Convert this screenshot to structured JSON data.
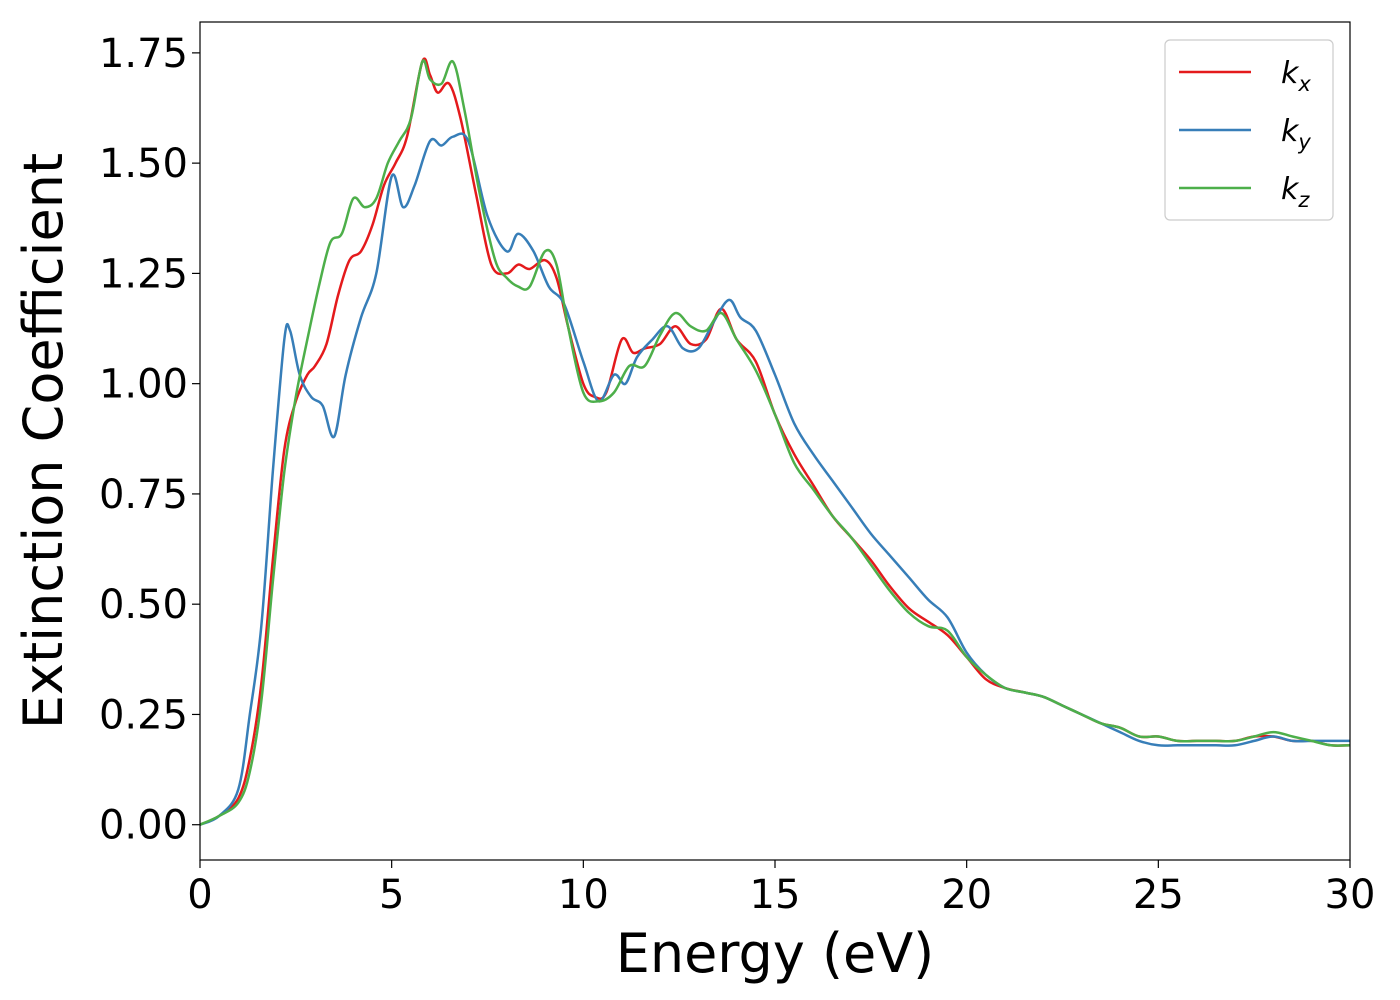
{
  "chart_data": {
    "type": "line",
    "title": "",
    "xlabel": "Energy (eV)",
    "ylabel": "Extinction Coefficient",
    "xlim": [
      0,
      30
    ],
    "ylim": [
      -0.08,
      1.82
    ],
    "xticks": [
      0,
      5,
      10,
      15,
      20,
      25,
      30
    ],
    "xtick_labels": [
      "0",
      "5",
      "10",
      "15",
      "20",
      "25",
      "30"
    ],
    "yticks": [
      0.0,
      0.25,
      0.5,
      0.75,
      1.0,
      1.25,
      1.5,
      1.75
    ],
    "ytick_labels": [
      "0.00",
      "0.25",
      "0.50",
      "0.75",
      "1.00",
      "1.25",
      "1.50",
      "1.75"
    ],
    "grid": false,
    "legend_position": "top-right",
    "series": [
      {
        "name": "k_x",
        "label_main": "k",
        "label_sub": "x",
        "color": "#e41a1c",
        "x": [
          0,
          0.5,
          1.0,
          1.3,
          1.6,
          1.9,
          2.2,
          2.5,
          2.8,
          3.0,
          3.3,
          3.6,
          3.9,
          4.2,
          4.5,
          4.8,
          5.1,
          5.4,
          5.8,
          6.0,
          6.2,
          6.5,
          6.8,
          7.2,
          7.6,
          8.0,
          8.3,
          8.6,
          9.0,
          9.3,
          9.6,
          10.0,
          10.3,
          10.6,
          11.0,
          11.3,
          11.6,
          12.0,
          12.4,
          12.8,
          13.2,
          13.6,
          14.0,
          14.5,
          15.0,
          15.5,
          16.0,
          16.5,
          17.0,
          17.5,
          18.0,
          18.5,
          19.0,
          19.5,
          20.0,
          20.5,
          21.0,
          21.5,
          22.0,
          22.5,
          23.0,
          23.5,
          24.0,
          24.5,
          25.0,
          25.5,
          26.0,
          26.5,
          27.0,
          27.5,
          28.0,
          28.5,
          29.0,
          29.5,
          30.0
        ],
        "y": [
          0.0,
          0.02,
          0.06,
          0.15,
          0.32,
          0.6,
          0.85,
          0.96,
          1.02,
          1.04,
          1.09,
          1.2,
          1.28,
          1.3,
          1.36,
          1.45,
          1.5,
          1.56,
          1.73,
          1.7,
          1.66,
          1.68,
          1.6,
          1.43,
          1.27,
          1.25,
          1.27,
          1.26,
          1.28,
          1.24,
          1.13,
          1.0,
          0.97,
          0.98,
          1.1,
          1.07,
          1.08,
          1.09,
          1.13,
          1.09,
          1.1,
          1.17,
          1.1,
          1.05,
          0.93,
          0.84,
          0.77,
          0.7,
          0.65,
          0.6,
          0.54,
          0.49,
          0.46,
          0.43,
          0.38,
          0.33,
          0.31,
          0.3,
          0.29,
          0.27,
          0.25,
          0.23,
          0.22,
          0.2,
          0.2,
          0.19,
          0.19,
          0.19,
          0.19,
          0.2,
          0.2,
          0.19,
          0.19,
          0.18,
          0.18
        ]
      },
      {
        "name": "k_y",
        "label_main": "k",
        "label_sub": "y",
        "color": "#377eb8",
        "x": [
          0,
          0.5,
          1.0,
          1.3,
          1.6,
          1.9,
          2.2,
          2.35,
          2.6,
          2.9,
          3.2,
          3.5,
          3.8,
          4.2,
          4.6,
          5.0,
          5.3,
          5.6,
          6.0,
          6.3,
          6.6,
          7.0,
          7.5,
          8.0,
          8.3,
          8.7,
          9.1,
          9.5,
          10.0,
          10.4,
          10.8,
          11.1,
          11.4,
          11.8,
          12.2,
          12.6,
          13.0,
          13.4,
          13.8,
          14.1,
          14.5,
          15.0,
          15.5,
          16.0,
          16.5,
          17.0,
          17.5,
          18.0,
          18.5,
          19.0,
          19.5,
          20.0,
          20.5,
          21.0,
          21.5,
          22.0,
          22.5,
          23.0,
          23.5,
          24.0,
          24.5,
          25.0,
          25.5,
          26.0,
          26.5,
          27.0,
          27.5,
          28.0,
          28.5,
          29.0,
          29.5,
          30.0
        ],
        "y": [
          0.0,
          0.02,
          0.08,
          0.25,
          0.45,
          0.8,
          1.1,
          1.12,
          1.02,
          0.97,
          0.95,
          0.88,
          1.02,
          1.15,
          1.25,
          1.47,
          1.4,
          1.45,
          1.55,
          1.54,
          1.56,
          1.55,
          1.38,
          1.3,
          1.34,
          1.3,
          1.22,
          1.18,
          1.05,
          0.96,
          1.02,
          1.0,
          1.06,
          1.1,
          1.13,
          1.08,
          1.08,
          1.14,
          1.19,
          1.15,
          1.12,
          1.02,
          0.91,
          0.84,
          0.78,
          0.72,
          0.66,
          0.61,
          0.56,
          0.51,
          0.47,
          0.39,
          0.34,
          0.31,
          0.3,
          0.29,
          0.27,
          0.25,
          0.23,
          0.21,
          0.19,
          0.18,
          0.18,
          0.18,
          0.18,
          0.18,
          0.19,
          0.2,
          0.19,
          0.19,
          0.19,
          0.19
        ]
      },
      {
        "name": "k_z",
        "label_main": "k",
        "label_sub": "z",
        "color": "#4daf4a",
        "x": [
          0,
          0.5,
          1.0,
          1.3,
          1.6,
          1.9,
          2.2,
          2.5,
          2.8,
          3.1,
          3.4,
          3.7,
          4.0,
          4.3,
          4.6,
          4.9,
          5.2,
          5.5,
          5.8,
          6.0,
          6.3,
          6.6,
          6.9,
          7.3,
          7.7,
          8.0,
          8.3,
          8.6,
          9.0,
          9.3,
          9.6,
          10.0,
          10.4,
          10.8,
          11.2,
          11.6,
          12.0,
          12.4,
          12.8,
          13.2,
          13.6,
          14.0,
          14.5,
          15.0,
          15.5,
          16.0,
          16.5,
          17.0,
          17.5,
          18.0,
          18.5,
          19.0,
          19.5,
          20.0,
          20.5,
          21.0,
          21.5,
          22.0,
          22.5,
          23.0,
          23.5,
          24.0,
          24.5,
          25.0,
          25.5,
          26.0,
          26.5,
          27.0,
          27.5,
          28.0,
          28.5,
          29.0,
          29.5,
          30.0
        ],
        "y": [
          0.0,
          0.02,
          0.05,
          0.12,
          0.28,
          0.55,
          0.8,
          0.97,
          1.1,
          1.22,
          1.32,
          1.34,
          1.42,
          1.4,
          1.42,
          1.5,
          1.55,
          1.6,
          1.73,
          1.69,
          1.68,
          1.73,
          1.62,
          1.43,
          1.28,
          1.24,
          1.22,
          1.22,
          1.3,
          1.27,
          1.13,
          0.98,
          0.96,
          0.98,
          1.04,
          1.04,
          1.11,
          1.16,
          1.13,
          1.12,
          1.16,
          1.1,
          1.03,
          0.93,
          0.82,
          0.76,
          0.7,
          0.65,
          0.59,
          0.53,
          0.48,
          0.45,
          0.44,
          0.38,
          0.34,
          0.31,
          0.3,
          0.29,
          0.27,
          0.25,
          0.23,
          0.22,
          0.2,
          0.2,
          0.19,
          0.19,
          0.19,
          0.19,
          0.2,
          0.21,
          0.2,
          0.19,
          0.18,
          0.18
        ]
      }
    ]
  }
}
